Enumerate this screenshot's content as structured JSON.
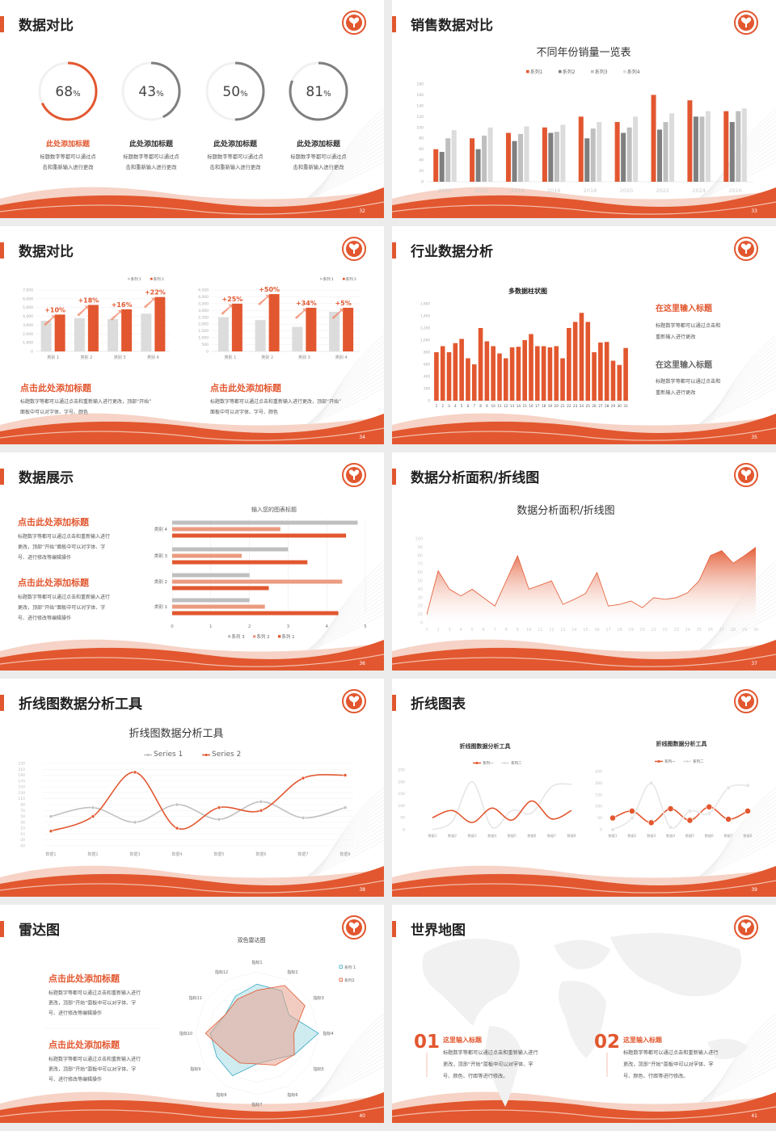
{
  "colors": {
    "accent": "#e2572f",
    "accent_light": "#eb9b80",
    "gray_dark": "#7f7f7f",
    "gray_mid": "#bfbfbf",
    "gray_light": "#dcdcdc",
    "teal": "#3aa8c1"
  },
  "slides": [
    {
      "page": "32",
      "title": "数据对比",
      "rings": [
        {
          "value": 68,
          "label": "68",
          "unit": "%",
          "heading": "此处添加标题",
          "desc": [
            "标题数字等都可以通过点",
            "击和重新输入进行更改"
          ]
        },
        {
          "value": 43,
          "label": "43",
          "unit": "%",
          "heading": "此处添加标题",
          "desc": [
            "标题数字等都可以通过点",
            "击和重新输入进行更改"
          ]
        },
        {
          "value": 50,
          "label": "50",
          "unit": "%",
          "heading": "此处添加标题",
          "desc": [
            "标题数字等都可以通过点",
            "击和重新输入进行更改"
          ]
        },
        {
          "value": 81,
          "label": "81",
          "unit": "%",
          "heading": "此处添加标题",
          "desc": [
            "标题数字等都可以通过点",
            "击和重新输入进行更改"
          ]
        }
      ]
    },
    {
      "page": "33",
      "title": "销售数据对比"
    },
    {
      "page": "34",
      "title": "数据对比",
      "blocks": [
        {
          "heading": "点击此处添加标题",
          "desc": [
            "标题数字等都可以通过点击和重新输入进行更改，顶部“开始”",
            "面板中可以对字体、字号、颜色"
          ]
        },
        {
          "heading": "点击此处添加标题",
          "desc": [
            "标题数字等都可以通过点击和重新输入进行更改，顶部“开始”",
            "面板中可以对字体、字号、颜色"
          ]
        }
      ]
    },
    {
      "page": "35",
      "title": "行业数据分析",
      "blocks": [
        {
          "heading": "在这里输入标题",
          "desc": [
            "标题数字等都可以通过点击和",
            "重新输入进行更改"
          ]
        },
        {
          "heading": "在这里输入标题",
          "desc": [
            "标题数字等都可以通过点击和",
            "重新输入进行更改"
          ]
        }
      ]
    },
    {
      "page": "36",
      "title": "数据展示",
      "blocks": [
        {
          "heading": "点击此处添加标题",
          "desc": [
            "标题数字等都可以通过点击和重新输入进行",
            "更改，顶部“开始”面板中可以对字体、字",
            "号、进行修改等编辑操作"
          ]
        },
        {
          "heading": "点击此处添加标题",
          "desc": [
            "标题数字等都可以通过点击和重新输入进行",
            "更改，顶部“开始”面板中可以对字体、字",
            "号、进行修改等编辑操作"
          ]
        }
      ]
    },
    {
      "page": "37",
      "title": "数据分析面积/折线图"
    },
    {
      "page": "38",
      "title": "折线图数据分析工具"
    },
    {
      "page": "39",
      "title": "折线图表"
    },
    {
      "page": "40",
      "title": "雷达图",
      "blocks": [
        {
          "heading": "点击此处添加标题",
          "desc": [
            "标题数字等都可以通过点击和重新输入进行",
            "更改，顶部“开始”面板中可以对字体、字",
            "号、进行修改等编辑操作"
          ]
        },
        {
          "heading": "点击此处添加标题",
          "desc": [
            "标题数字等都可以通过点击和重新输入进行",
            "更改，顶部“开始”面板中可以对字体、字",
            "号、进行修改等编辑操作"
          ]
        }
      ]
    },
    {
      "page": "41",
      "title": "世界地图",
      "blocks": [
        {
          "number": "01",
          "heading": "这里输入标题",
          "desc": [
            "标题数字等都可以通过点击和重新输入进行",
            "更改，顶部“开始”面板中可以对字体、字",
            "号、颜色、行距等进行修改。"
          ]
        },
        {
          "number": "02",
          "heading": "这里输入标题",
          "desc": [
            "标题数字等都可以通过点击和重新输入进行",
            "更改，顶部“开始”面板中可以对字体、字",
            "号、颜色、行距等进行修改。"
          ]
        }
      ]
    }
  ],
  "chart_data": [
    {
      "type": "bar",
      "title": "不同年份销量一览表",
      "categories": [
        "2010",
        "2012",
        "2014",
        "2016",
        "2018",
        "2020",
        "2022",
        "2024",
        "2026"
      ],
      "series": [
        {
          "name": "系列1",
          "values": [
            60,
            80,
            90,
            100,
            120,
            110,
            160,
            150,
            130
          ]
        },
        {
          "name": "系列2",
          "values": [
            55,
            60,
            75,
            90,
            80,
            90,
            96,
            120,
            110
          ]
        },
        {
          "name": "系列3",
          "values": [
            80,
            85,
            88,
            92,
            98,
            100,
            110,
            120,
            130
          ]
        },
        {
          "name": "系列4",
          "values": [
            95,
            100,
            102,
            105,
            110,
            120,
            126,
            130,
            135
          ]
        }
      ],
      "ylim": [
        0,
        180
      ],
      "yticks": [
        "0",
        "20",
        "40",
        "60",
        "80",
        "100",
        "120",
        "140",
        "160",
        "180"
      ],
      "legend": "top"
    },
    {
      "type": "bar",
      "categories": [
        "类别 1",
        "类别 2",
        "类别 3",
        "类别 4"
      ],
      "series": [
        {
          "name": "系列 1",
          "values": [
            3500,
            3800,
            3700,
            4300
          ]
        },
        {
          "name": "系列 2",
          "values": [
            4200,
            5300,
            4800,
            6200
          ]
        }
      ],
      "annotations": [
        "+10%",
        "+18%",
        "+16%",
        "+22%"
      ],
      "ylim": [
        0,
        7000
      ],
      "yticks": [
        "0",
        "1,000",
        "2,000",
        "3,000",
        "4,000",
        "5,000",
        "6,000",
        "7,000"
      ],
      "grid": true,
      "legend": "top-right"
    },
    {
      "type": "bar",
      "categories": [
        "类别 1",
        "类别 2",
        "类别 3",
        "类别 4"
      ],
      "series": [
        {
          "name": "系列 1",
          "values": [
            2500,
            2300,
            1800,
            2900
          ]
        },
        {
          "name": "系列 2",
          "values": [
            3500,
            4200,
            3200,
            3200
          ]
        }
      ],
      "annotations": [
        "+25%",
        "+50%",
        "+34%",
        "+5%"
      ],
      "ylim": [
        0,
        4500
      ],
      "yticks": [
        "0",
        "500",
        "1,000",
        "1,500",
        "2,000",
        "2,500",
        "3,000",
        "3,500",
        "4,000",
        "4,500"
      ],
      "grid": true,
      "legend": "top-right"
    },
    {
      "type": "bar",
      "title": "多数据柱状图",
      "categories": [
        "1",
        "2",
        "3",
        "4",
        "5",
        "6",
        "7",
        "8",
        "9",
        "10",
        "11",
        "12",
        "13",
        "14",
        "15",
        "16",
        "17",
        "18",
        "19",
        "20",
        "21",
        "22",
        "23",
        "24",
        "25",
        "26",
        "27",
        "28",
        "29",
        "30",
        "31"
      ],
      "values": [
        800,
        900,
        800,
        950,
        1020,
        700,
        600,
        1200,
        980,
        900,
        780,
        700,
        880,
        890,
        1000,
        1100,
        900,
        900,
        880,
        900,
        700,
        1200,
        1300,
        1450,
        1300,
        800,
        960,
        970,
        660,
        590,
        870
      ],
      "ylim": [
        0,
        1600
      ],
      "yticks": [
        "0",
        "200",
        "400",
        "600",
        "800",
        "1,000",
        "1,200",
        "1,400",
        "1,600"
      ]
    },
    {
      "type": "bar",
      "orientation": "horizontal",
      "title": "输入您的图表标题",
      "categories": [
        "类别 1",
        "类别 2",
        "类别 3",
        "类别 4"
      ],
      "series": [
        {
          "name": "系列 3",
          "values": [
            2,
            2,
            3,
            4.8
          ]
        },
        {
          "name": "系列 2",
          "values": [
            2.4,
            4.4,
            1.8,
            2.8
          ]
        },
        {
          "name": "系列 1",
          "values": [
            4.3,
            2.5,
            3.5,
            4.5
          ]
        }
      ],
      "xlim": [
        0,
        5
      ],
      "xticks": [
        "0",
        "1",
        "2",
        "3",
        "4",
        "5"
      ],
      "grid": true,
      "legend": "bottom"
    },
    {
      "type": "area",
      "title": "数据分析面积/折线图",
      "x": [
        "1",
        "2",
        "3",
        "4",
        "5",
        "6",
        "7",
        "8",
        "9",
        "10",
        "11",
        "12",
        "13",
        "14",
        "15",
        "16",
        "17",
        "18",
        "19",
        "20",
        "21",
        "22",
        "23",
        "24",
        "25",
        "26",
        "27",
        "28",
        "29",
        "30"
      ],
      "values": [
        10,
        62,
        40,
        32,
        40,
        30,
        20,
        50,
        80,
        40,
        45,
        50,
        22,
        28,
        35,
        60,
        20,
        22,
        26,
        18,
        30,
        28,
        30,
        36,
        50,
        80,
        86,
        71,
        80,
        90
      ],
      "ylim": [
        0,
        100
      ],
      "yticks": [
        "0",
        "10",
        "20",
        "30",
        "40",
        "50",
        "60",
        "70",
        "80",
        "90",
        "100"
      ]
    },
    {
      "type": "line",
      "title": "折线图数据分析工具",
      "categories": [
        "数据1",
        "数据2",
        "数据3",
        "数据4",
        "数据5",
        "数据6",
        "数据7",
        "数据8"
      ],
      "series": [
        {
          "name": "Series 1",
          "values": [
            50,
            80,
            30,
            90,
            40,
            100,
            45,
            80
          ]
        },
        {
          "name": "Series 2",
          "values": [
            0,
            50,
            200,
            10,
            80,
            70,
            180,
            190
          ]
        }
      ],
      "ylim": [
        -50,
        230
      ],
      "yticks": [
        "-50",
        "-30",
        "-10",
        "10",
        "30",
        "50",
        "70",
        "90",
        "110",
        "130",
        "150",
        "170",
        "190",
        "210",
        "230"
      ],
      "legend": "top"
    },
    {
      "type": "line",
      "title": "折线图数据分析工具",
      "categories": [
        "数据1",
        "数据2",
        "数据3",
        "数据4",
        "数据5",
        "数据6",
        "数据7",
        "数据8"
      ],
      "series": [
        {
          "name": "系列一",
          "values": [
            50,
            80,
            30,
            90,
            40,
            120,
            45,
            80
          ]
        },
        {
          "name": "系列二",
          "values": [
            0,
            35,
            200,
            10,
            80,
            70,
            180,
            190
          ]
        }
      ],
      "ylim": [
        0,
        250
      ],
      "yticks": [
        "0",
        "50",
        "100",
        "150",
        "200",
        "250"
      ],
      "legend": "top"
    },
    {
      "type": "line",
      "title": "折线图数据分析工具",
      "categories": [
        "数据1",
        "数据2",
        "数据3",
        "数据4",
        "数据5",
        "数据6",
        "数据7",
        "数据8"
      ],
      "series": [
        {
          "name": "系列一",
          "values": [
            50,
            80,
            30,
            90,
            40,
            98,
            45,
            80
          ]
        },
        {
          "name": "系列二",
          "values": [
            0,
            50,
            200,
            10,
            80,
            70,
            180,
            190
          ]
        }
      ],
      "ylim": [
        0,
        250
      ],
      "yticks": [
        "0",
        "50",
        "100",
        "150",
        "200",
        "250"
      ],
      "legend": "top"
    },
    {
      "type": "radar",
      "title": "双色雷达图",
      "axes": [
        "指标1",
        "指标2",
        "指标3",
        "指标4",
        "指标5",
        "指标6",
        "指标7",
        "指标8",
        "指标9",
        "指标10",
        "指标11",
        "指标12"
      ],
      "series": [
        {
          "name": "系列 1",
          "values": [
            4,
            4,
            3,
            5,
            3.5,
            2.5,
            2.5,
            4,
            3.8,
            3.8,
            3,
            3.5
          ]
        },
        {
          "name": "系列2",
          "values": [
            3.5,
            4.5,
            4.5,
            3,
            3.5,
            3,
            2.5,
            2.8,
            3,
            4.2,
            3,
            3.2
          ]
        }
      ],
      "rlim": [
        0,
        5
      ],
      "legend": "top-right"
    }
  ]
}
